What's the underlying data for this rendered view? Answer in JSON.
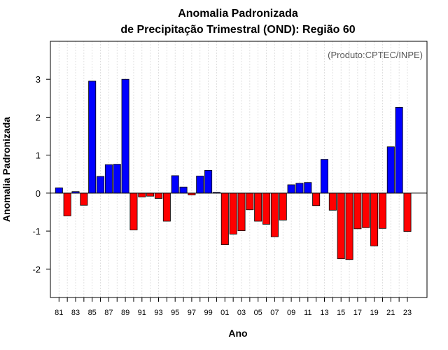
{
  "chart_data": {
    "type": "bar",
    "title": "Anomalia Padronizada",
    "subtitle": "de Precipitação Trimestral (OND): Região 60",
    "xlabel": "Ano",
    "ylabel": "Anomalia Padronizada",
    "credit": "(Produto:CPTEC/INPE)",
    "ylim": [
      -2.75,
      4.0
    ],
    "yticks": [
      -2,
      -1,
      0,
      1,
      2,
      3
    ],
    "positive_color": "#0000ff",
    "negative_color": "#ff0000",
    "categories": [
      "81",
      "82",
      "83",
      "84",
      "85",
      "86",
      "87",
      "88",
      "89",
      "90",
      "91",
      "92",
      "93",
      "94",
      "95",
      "96",
      "97",
      "98",
      "99",
      "00",
      "01",
      "02",
      "03",
      "04",
      "05",
      "06",
      "07",
      "08",
      "09",
      "10",
      "11",
      "12",
      "13",
      "14",
      "15",
      "16",
      "17",
      "18",
      "19",
      "20",
      "21",
      "22",
      "23"
    ],
    "xtick_labels": [
      "81",
      "83",
      "85",
      "87",
      "89",
      "91",
      "93",
      "95",
      "97",
      "99",
      "01",
      "03",
      "05",
      "07",
      "09",
      "11",
      "13",
      "15",
      "17",
      "19",
      "21",
      "23"
    ],
    "values": [
      0.14,
      -0.6,
      0.04,
      -0.32,
      2.95,
      0.44,
      0.75,
      0.76,
      3.0,
      -0.97,
      -0.1,
      -0.08,
      -0.14,
      -0.74,
      0.46,
      0.16,
      -0.05,
      0.45,
      0.6,
      0.02,
      -1.36,
      -1.08,
      -0.99,
      -0.44,
      -0.74,
      -0.82,
      -1.15,
      -0.71,
      0.22,
      0.26,
      0.28,
      -0.33,
      0.89,
      -0.45,
      -1.73,
      -1.75,
      -0.94,
      -0.91,
      -1.39,
      -0.93,
      1.22,
      2.26,
      -1.01
    ]
  }
}
